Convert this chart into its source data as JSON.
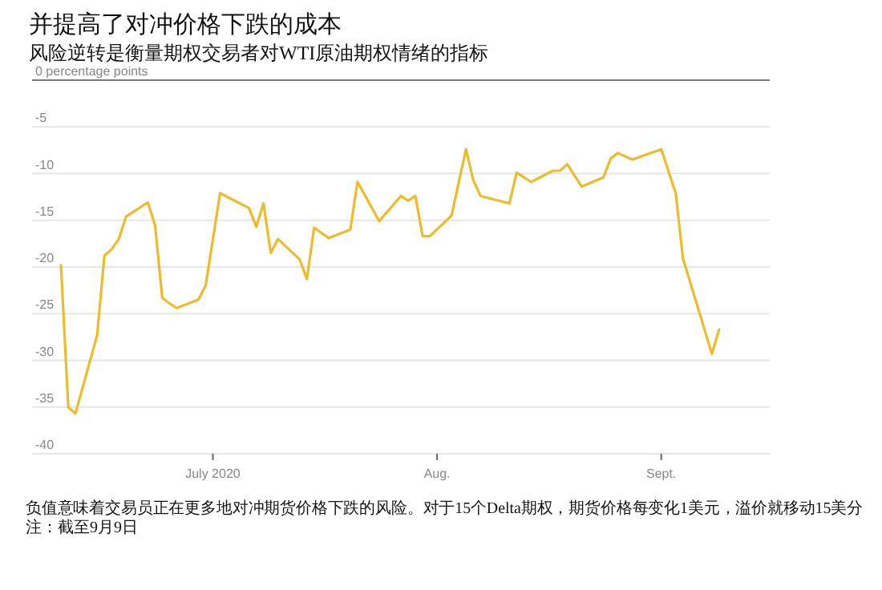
{
  "chart_data": {
    "type": "line",
    "title": "并提高了对冲价格下跌的成本",
    "subtitle": "风险逆转是衡量期权交易者对WTI原油期权情绪的指标",
    "x": [
      "2020-06-10",
      "2020-06-11",
      "2020-06-12",
      "2020-06-15",
      "2020-06-16",
      "2020-06-17",
      "2020-06-18",
      "2020-06-19",
      "2020-06-22",
      "2020-06-23",
      "2020-06-24",
      "2020-06-25",
      "2020-06-26",
      "2020-06-29",
      "2020-06-30",
      "2020-07-02",
      "2020-07-06",
      "2020-07-07",
      "2020-07-08",
      "2020-07-09",
      "2020-07-10",
      "2020-07-13",
      "2020-07-14",
      "2020-07-15",
      "2020-07-17",
      "2020-07-20",
      "2020-07-21",
      "2020-07-24",
      "2020-07-27",
      "2020-07-28",
      "2020-07-29",
      "2020-07-30",
      "2020-07-31",
      "2020-08-03",
      "2020-08-05",
      "2020-08-06",
      "2020-08-07",
      "2020-08-11",
      "2020-08-12",
      "2020-08-14",
      "2020-08-17",
      "2020-08-18",
      "2020-08-19",
      "2020-08-21",
      "2020-08-24",
      "2020-08-25",
      "2020-08-26",
      "2020-08-28",
      "2020-09-01",
      "2020-09-03",
      "2020-09-04",
      "2020-09-08",
      "2020-09-09"
    ],
    "series": [
      {
        "color": "#eebc2a",
        "values": [
          -19.8,
          -35.0,
          -35.7,
          -27.3,
          -18.8,
          -18.1,
          -17.0,
          -14.6,
          -13.1,
          -15.5,
          -23.3,
          -23.9,
          -24.4,
          -23.5,
          -22.0,
          -12.1,
          -13.7,
          -15.7,
          -13.2,
          -18.5,
          -17.0,
          -19.2,
          -21.3,
          -15.8,
          -16.9,
          -16.0,
          -10.9,
          -15.1,
          -12.4,
          -12.9,
          -12.4,
          -16.7,
          -16.7,
          -14.5,
          -7.4,
          -10.7,
          -12.4,
          -13.2,
          -9.9,
          -10.9,
          -9.7,
          -9.7,
          -9.0,
          -11.4,
          -10.4,
          -8.4,
          -7.8,
          -8.5,
          -7.4,
          -12.1,
          -19.1,
          -29.3,
          -26.7
        ]
      }
    ],
    "xlim": [
      "2020-06-06",
      "2020-09-16"
    ],
    "xticks": [
      {
        "value": "2020-07-01",
        "label": "July 2020"
      },
      {
        "value": "2020-08-01",
        "label": "Aug."
      },
      {
        "value": "2020-09-01",
        "label": "Sept."
      }
    ],
    "ylim": [
      -40,
      0
    ],
    "yticks": [
      {
        "value": 0,
        "label": "0 percentage points"
      },
      -5,
      -10,
      -15,
      -20,
      -25,
      -30,
      -35,
      -40
    ],
    "grid": "y",
    "marker": "none",
    "line_style": "solid",
    "annotations": [
      "负值意味着交易员正在更多地对冲期货价格下跌的风险。对于15个Delta期权，期货价格每变化1美元，溢价就移动15美分",
      "注：截至9月9日"
    ]
  }
}
